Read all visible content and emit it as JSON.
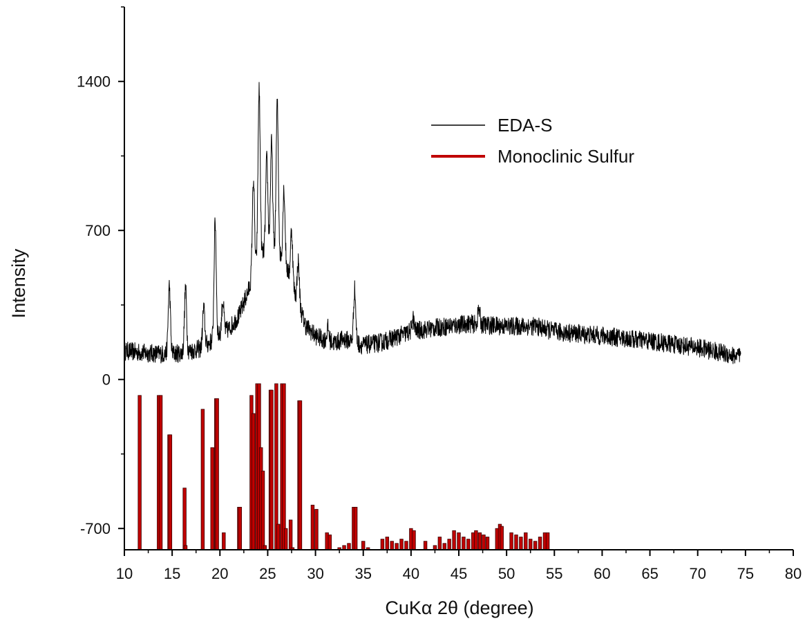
{
  "chart_data": {
    "type": "line",
    "title": "",
    "xlabel": "CuKα  2θ (degree)",
    "ylabel": "Intensity",
    "xlim": [
      10,
      80
    ],
    "ylim": [
      -800,
      1750
    ],
    "x_ticks": [
      "10",
      "15",
      "20",
      "25",
      "30",
      "35",
      "40",
      "45",
      "50",
      "55",
      "60",
      "65",
      "70",
      "75",
      "80"
    ],
    "y_ticks": [
      {
        "value": 1400,
        "label": "1400"
      },
      {
        "value": 700,
        "label": "700"
      },
      {
        "value": 0,
        "label": "0"
      },
      {
        "value": -700,
        "label": "-700"
      }
    ],
    "grid": false,
    "legend_position": "top-right",
    "legend": [
      {
        "label": "EDA-S",
        "color": "#000000"
      },
      {
        "label": "Monoclinic Sulfur",
        "color": "#c00000"
      }
    ],
    "series": [
      {
        "name": "EDA-S",
        "type": "line",
        "color": "#000000",
        "x_range": [
          10,
          74.5
        ],
        "baseline": [
          [
            10,
            135
          ],
          [
            12,
            125
          ],
          [
            14,
            120
          ],
          [
            15,
            120
          ],
          [
            16,
            125
          ],
          [
            17,
            135
          ],
          [
            18,
            145
          ],
          [
            19,
            175
          ],
          [
            20,
            210
          ],
          [
            21,
            240
          ],
          [
            22,
            300
          ],
          [
            23,
            420
          ],
          [
            24,
            560
          ],
          [
            25,
            620
          ],
          [
            26,
            600
          ],
          [
            27,
            520
          ],
          [
            28,
            380
          ],
          [
            29,
            250
          ],
          [
            30,
            205
          ],
          [
            31,
            185
          ],
          [
            32,
            172
          ],
          [
            33,
            190
          ],
          [
            35,
            160
          ],
          [
            37,
            175
          ],
          [
            40,
            225
          ],
          [
            43,
            245
          ],
          [
            46,
            262
          ],
          [
            48,
            255
          ],
          [
            50,
            250
          ],
          [
            53,
            250
          ],
          [
            55,
            225
          ],
          [
            60,
            205
          ],
          [
            65,
            180
          ],
          [
            70,
            150
          ],
          [
            74.5,
            105
          ]
        ],
        "peaks": [
          [
            14.7,
            320
          ],
          [
            16.4,
            300
          ],
          [
            18.3,
            180
          ],
          [
            19.5,
            550
          ],
          [
            20.3,
            150
          ],
          [
            23.5,
            450
          ],
          [
            24.1,
            800
          ],
          [
            24.9,
            420
          ],
          [
            25.4,
            500
          ],
          [
            26.0,
            700
          ],
          [
            26.7,
            350
          ],
          [
            27.5,
            250
          ],
          [
            28.2,
            200
          ],
          [
            34.1,
            250
          ],
          [
            31.3,
            60
          ],
          [
            40.2,
            60
          ],
          [
            47.1,
            70
          ]
        ],
        "noise_amplitude": 45
      },
      {
        "name": "Monoclinic Sulfur",
        "type": "bar",
        "color": "#c00000",
        "base": -800,
        "x": [
          11.6,
          13.6,
          13.8,
          14.7,
          14.8,
          16.3,
          16.4,
          18.2,
          19.2,
          19.6,
          19.7,
          20.4,
          22.0,
          22.1,
          23.3,
          23.5,
          23.9,
          24.1,
          24.3,
          24.5,
          24.7,
          25.3,
          25.4,
          25.9,
          26.1,
          26.5,
          26.7,
          26.9,
          27.4,
          27.6,
          28.3,
          28.4,
          29.7,
          30.1,
          31.2,
          31.5,
          32.5,
          33.0,
          33.5,
          34.0,
          34.2,
          35.0,
          35.5,
          37.0,
          37.5,
          38.0,
          38.5,
          39.0,
          39.5,
          40.0,
          40.3,
          41.5,
          42.5,
          43.0,
          43.5,
          44.0,
          44.5,
          45.0,
          45.5,
          46.0,
          46.5,
          46.8,
          47.2,
          47.6,
          48.0,
          49.0,
          49.3,
          49.5,
          50.5,
          51.0,
          51.5,
          52.0,
          52.5,
          53.0,
          53.5,
          54.0,
          54.3
        ],
        "values": [
          -75,
          -75,
          -75,
          -260,
          -260,
          -510,
          -780,
          -140,
          -320,
          -90,
          -90,
          -720,
          -600,
          -600,
          -75,
          -160,
          -20,
          -20,
          -320,
          -430,
          -780,
          -50,
          -50,
          -20,
          -680,
          -20,
          -20,
          -700,
          -660,
          -790,
          -100,
          -100,
          -590,
          -610,
          -720,
          -730,
          -790,
          -780,
          -770,
          -600,
          -600,
          -760,
          -790,
          -750,
          -740,
          -760,
          -770,
          -750,
          -760,
          -700,
          -710,
          -760,
          -780,
          -740,
          -770,
          -750,
          -710,
          -720,
          -740,
          -750,
          -720,
          -710,
          -720,
          -730,
          -740,
          -700,
          -680,
          -690,
          -720,
          -730,
          -740,
          -720,
          -750,
          -760,
          -740,
          -720,
          -720
        ]
      }
    ]
  }
}
